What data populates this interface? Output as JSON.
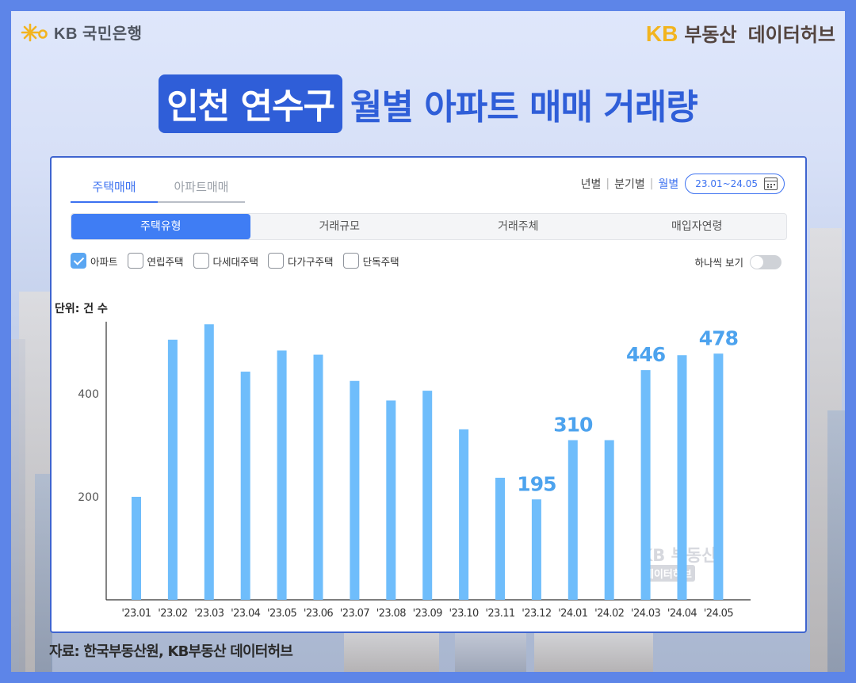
{
  "header": {
    "bank_logo": "KB 국민은행",
    "brand_kb": "KB",
    "brand_name": "부동산",
    "brand_sub": "데이터허브"
  },
  "headline": {
    "highlight": "인천 연수구",
    "rest": "월별 아파트 매매 거래량"
  },
  "tabs": [
    "주택매매",
    "아파트매매"
  ],
  "period": {
    "options": [
      "년별",
      "분기별",
      "월별"
    ],
    "active": "월별",
    "range": "23.01~24.05"
  },
  "segments": [
    "주택유형",
    "거래규모",
    "거래주체",
    "매입자연령"
  ],
  "checkboxes": [
    {
      "label": "아파트",
      "checked": true
    },
    {
      "label": "연립주택",
      "checked": false
    },
    {
      "label": "다세대주택",
      "checked": false
    },
    {
      "label": "다가구주택",
      "checked": false
    },
    {
      "label": "단독주택",
      "checked": false
    }
  ],
  "one_view_label": "하나씩 보기",
  "watermark": {
    "line1": "KB 부동산",
    "line2": "데이터허브"
  },
  "source": "자료: 한국부동산원, KB부동산 데이터허브",
  "colors": {
    "bar": "#6fbdfb",
    "label": "#4da3ee",
    "accent": "#2f5ed8"
  },
  "chart_data": {
    "type": "bar",
    "title": "",
    "ylabel": "단위: 건 수",
    "xlabel": "",
    "categories": [
      "'23.01",
      "'23.02",
      "'23.03",
      "'23.04",
      "'23.05",
      "'23.06",
      "'23.07",
      "'23.08",
      "'23.09",
      "'23.10",
      "'23.11",
      "'23.12",
      "'24.01",
      "'24.02",
      "'24.03",
      "'24.04",
      "'24.05"
    ],
    "values": [
      200,
      505,
      535,
      443,
      484,
      476,
      425,
      387,
      406,
      331,
      237,
      195,
      310,
      310,
      446,
      475,
      478
    ],
    "data_labels": {
      "11": "195",
      "12": "310",
      "14": "446",
      "16": "478"
    },
    "yticks": [
      200,
      400
    ],
    "ylim": [
      0,
      540
    ],
    "grid": false,
    "legend": "none"
  }
}
